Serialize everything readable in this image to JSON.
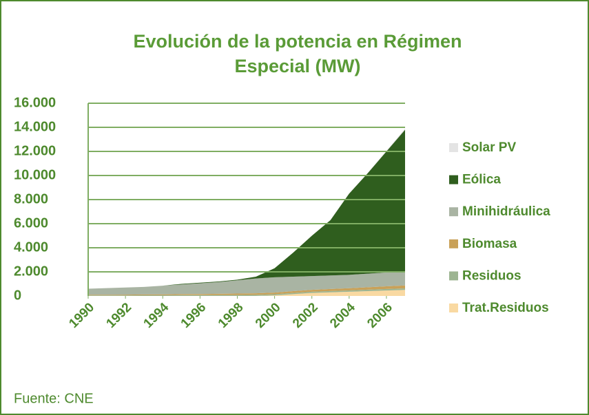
{
  "chart_data": {
    "type": "stacked_area",
    "title": [
      "Evolución de la potencia en Régimen",
      "Especial (MW)"
    ],
    "x": [
      1990,
      1991,
      1992,
      1993,
      1994,
      1995,
      1996,
      1997,
      1998,
      1999,
      2000,
      2001,
      2002,
      2003,
      2004,
      2005,
      2006,
      2007
    ],
    "xlim": [
      1990,
      2007
    ],
    "xticks": [
      1990,
      1992,
      1994,
      1996,
      1998,
      2000,
      2002,
      2004,
      2006
    ],
    "ylim": [
      0,
      16000
    ],
    "yticks": [
      0,
      {
        "value": 2000,
        "label": "2.000"
      },
      {
        "value": 4000,
        "label": "4.000"
      },
      {
        "value": 6000,
        "label": "6.000"
      },
      {
        "value": 8000,
        "label": "8.000"
      },
      {
        "value": 10000,
        "label": "10.000"
      },
      {
        "value": 12000,
        "label": "12.000"
      },
      {
        "value": 14000,
        "label": "14.000"
      },
      {
        "value": 16000,
        "label": "16.000"
      }
    ],
    "grid": true,
    "legend": "right",
    "series": [
      {
        "name": "Trat.Residuos",
        "color": "#f9d9a2",
        "values": [
          0,
          0,
          0,
          0,
          0,
          0,
          0,
          0,
          0,
          0,
          50,
          150,
          250,
          300,
          350,
          400,
          450,
          500
        ]
      },
      {
        "name": "Residuos",
        "color": "#9db592",
        "values": [
          50,
          50,
          50,
          60,
          60,
          70,
          70,
          80,
          80,
          90,
          90,
          100,
          100,
          110,
          110,
          120,
          130,
          130
        ]
      },
      {
        "name": "Biomasa",
        "color": "#c9a158",
        "values": [
          50,
          50,
          60,
          60,
          70,
          80,
          90,
          100,
          120,
          130,
          140,
          150,
          160,
          170,
          180,
          200,
          220,
          240
        ]
      },
      {
        "name": "Minihidráulica",
        "color": "#a9b4a3",
        "values": [
          500,
          550,
          590,
          630,
          720,
          800,
          890,
          970,
          1100,
          1230,
          1270,
          1200,
          1140,
          1120,
          1110,
          1130,
          1150,
          1130
        ]
      },
      {
        "name": "Eólica",
        "color": "#2f5e1e",
        "values": [
          0,
          0,
          0,
          0,
          0,
          50,
          50,
          50,
          50,
          150,
          750,
          2000,
          3350,
          4600,
          6750,
          8350,
          10050,
          11800
        ]
      },
      {
        "name": "Solar PV",
        "color": "#e4e4e4",
        "values": [
          0,
          0,
          0,
          0,
          0,
          0,
          0,
          0,
          0,
          0,
          0,
          0,
          0,
          10,
          20,
          30,
          50,
          100
        ]
      }
    ],
    "source": "Fuente: CNE"
  }
}
